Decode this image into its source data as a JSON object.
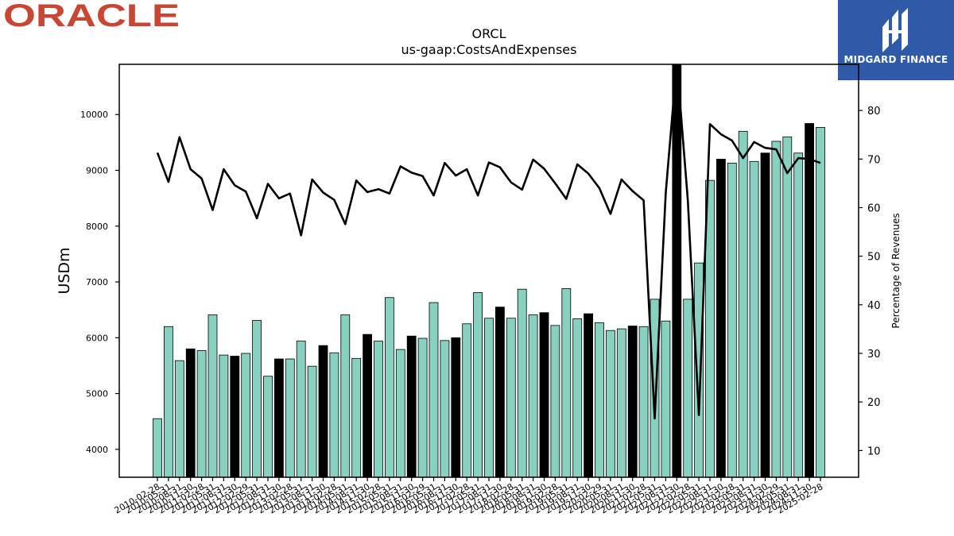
{
  "branding": {
    "left_logo": "ORACLE",
    "right_logo": "MIDGARD FINANCE",
    "colors": {
      "oracle_red": "#c74634",
      "midgard_blue": "#2e5aa8"
    }
  },
  "chart_data": {
    "type": "bar",
    "title": "ORCL",
    "subtitle": "us-gaap:CostsAndExpenses",
    "ylabel": "USDm",
    "y2label": "Percentage of Revenues",
    "ylim": [
      3500,
      10900
    ],
    "y2lim": [
      4.5,
      89.5
    ],
    "yticks": [
      4000,
      5000,
      6000,
      7000,
      8000,
      9000,
      10000
    ],
    "y2ticks": [
      10,
      20,
      30,
      40,
      50,
      60,
      70,
      80
    ],
    "grid": false,
    "colors": {
      "bar": "#88d0c0",
      "bar_highlight": "#000000",
      "line": "#000000"
    },
    "categories": [
      "2010-02-28",
      "2010-05-31",
      "2010-08-31",
      "2010-11-30",
      "2011-02-28",
      "2011-05-31",
      "2011-08-31",
      "2011-11-30",
      "2012-02-29",
      "2012-05-31",
      "2012-08-31",
      "2012-11-30",
      "2013-02-28",
      "2013-05-31",
      "2013-08-31",
      "2013-11-30",
      "2014-02-28",
      "2014-05-31",
      "2014-08-31",
      "2014-11-30",
      "2015-02-28",
      "2015-05-31",
      "2015-08-31",
      "2015-11-30",
      "2016-02-29",
      "2016-05-31",
      "2016-08-31",
      "2016-11-30",
      "2017-02-28",
      "2017-05-31",
      "2017-08-31",
      "2017-11-30",
      "2018-02-28",
      "2018-05-31",
      "2018-08-31",
      "2018-11-30",
      "2019-02-28",
      "2019-05-31",
      "2019-08-31",
      "2019-11-30",
      "2020-02-29",
      "2020-05-31",
      "2020-08-31",
      "2020-11-30",
      "2021-02-28",
      "2021-05-31",
      "2021-08-31",
      "2021-11-30",
      "2022-02-28",
      "2022-05-31",
      "2022-08-31",
      "2022-11-30",
      "2023-02-28",
      "2023-05-31",
      "2023-08-31",
      "2023-11-30",
      "2024-02-29",
      "2024-05-31",
      "2024-08-31",
      "2024-11-30",
      "2025-02-28"
    ],
    "x_tick_labels": [
      "2010-02-28",
      "2010-05-31",
      "2010-08-31",
      "2010-11-30",
      "2011-02-28",
      "2011-05-31",
      "2011-08-31",
      "2011-11-30",
      "2012-02-29",
      "2012-05-31",
      "2012-08-31",
      "2012-11-30",
      "2013-02-28",
      "2013-05-31",
      "2013-08-31",
      "2013-11-30",
      "2014-02-28",
      "2014-05-31",
      "2014-08-31",
      "2014-11-30",
      "2015-02-28",
      "2015-05-31",
      "2015-08-31",
      "2015-11-30",
      "2016-02-29",
      "2016-05-31",
      "2016-08-31",
      "2016-11-30",
      "2017-02-28",
      "2017-05-31",
      "2017-08-31",
      "2017-11-30",
      "2018-02-28",
      "2018-05-31",
      "2018-08-31",
      "2018-11-30",
      "2019-02-28",
      "2019-05-31",
      "2019-08-31",
      "2019-11-30",
      "2020-02-29",
      "2020-05-31",
      "2020-08-31",
      "2020-11-30",
      "2021-02-28",
      "2021-05-31",
      "2021-08-31",
      "2021-11-30",
      "2022-02-28",
      "2022-05-31",
      "2022-08-31",
      "2022-11-30",
      "2023-02-28",
      "2023-05-31",
      "2023-08-31",
      "2023-11-30",
      "2024-02-29",
      "2024-05-31",
      "2024-08-31",
      "2024-11-30",
      "2025-02-28"
    ],
    "series": [
      {
        "type": "bar",
        "axis": "left",
        "values": [
          4550,
          6200,
          5590,
          5800,
          5770,
          6410,
          5690,
          5670,
          5720,
          6310,
          5310,
          5620,
          5620,
          5940,
          5490,
          5860,
          5730,
          6410,
          5630,
          6060,
          5940,
          6720,
          5790,
          6030,
          5990,
          6630,
          5950,
          6000,
          6250,
          6810,
          6350,
          6550,
          6350,
          6870,
          6410,
          6450,
          6220,
          6880,
          6340,
          6430,
          6270,
          6130,
          6160,
          6210,
          6200,
          6690,
          6300,
          10900,
          6690,
          7340,
          8820,
          9200,
          9130,
          9700,
          9160,
          9310,
          9520,
          9600,
          9310,
          9840,
          9770
        ],
        "highlight": [
          false,
          false,
          false,
          true,
          false,
          false,
          false,
          true,
          false,
          false,
          false,
          true,
          false,
          false,
          false,
          true,
          false,
          false,
          false,
          true,
          false,
          false,
          false,
          true,
          false,
          false,
          false,
          true,
          false,
          false,
          false,
          true,
          false,
          false,
          false,
          true,
          false,
          false,
          false,
          true,
          false,
          false,
          false,
          true,
          false,
          false,
          false,
          true,
          false,
          false,
          false,
          true,
          false,
          false,
          false,
          true,
          false,
          false,
          false,
          true,
          false
        ]
      },
      {
        "type": "line",
        "axis": "right",
        "values": [
          71.3,
          65.3,
          74.5,
          67.9,
          66.0,
          59.5,
          67.9,
          64.6,
          63.3,
          57.8,
          64.9,
          61.9,
          62.9,
          54.3,
          65.8,
          63.1,
          61.6,
          56.6,
          65.6,
          63.2,
          63.8,
          62.9,
          68.5,
          67.2,
          66.5,
          62.5,
          69.2,
          66.6,
          67.9,
          62.5,
          69.3,
          68.3,
          65.2,
          63.7,
          69.9,
          68.0,
          65.0,
          61.8,
          68.9,
          67.0,
          64.0,
          58.7,
          65.8,
          63.4,
          61.5,
          16.6,
          63.0,
          90.0,
          61.5,
          17.3,
          77.2,
          75.1,
          73.8,
          70.2,
          73.5,
          72.3,
          72.0,
          67.1,
          70.2,
          70.0,
          69.2
        ]
      }
    ]
  }
}
